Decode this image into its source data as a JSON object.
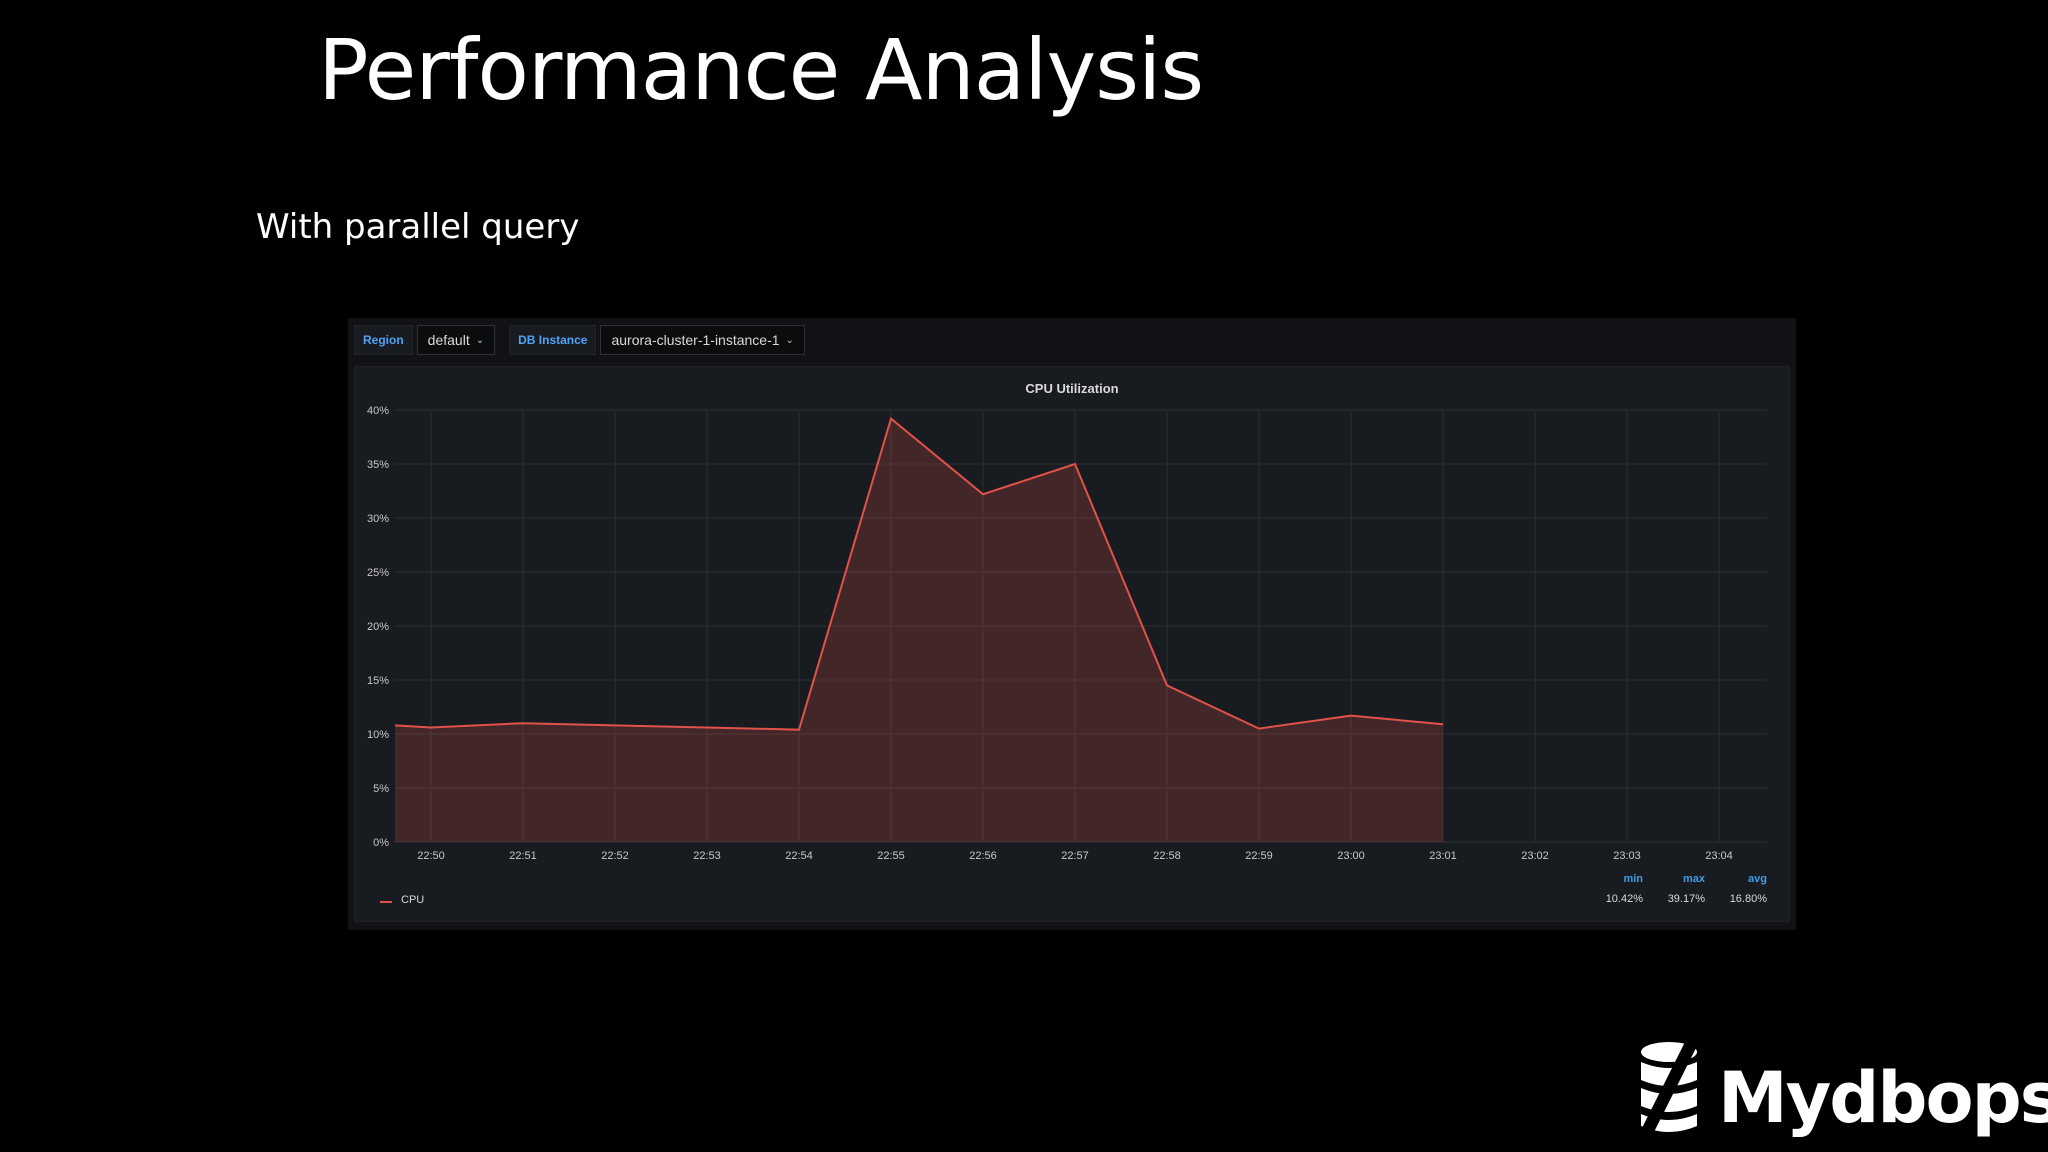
{
  "slide": {
    "title": "Performance Analysis",
    "subtitle": "With parallel query"
  },
  "dashboard": {
    "variables": [
      {
        "label": "Region",
        "value": "default"
      },
      {
        "label": "DB Instance",
        "value": "aurora-cluster-1-instance-1"
      }
    ],
    "panel_title": "CPU Utilization"
  },
  "legend": {
    "series_name": "CPU",
    "series_color": "#e0524a",
    "stats_headers": [
      "min",
      "max",
      "avg"
    ],
    "stats_values": [
      "10.42%",
      "39.17%",
      "16.80%"
    ]
  },
  "brand": {
    "name": "Mydbops",
    "logo_icon": "mydbops-logo-icon"
  },
  "chart_data": {
    "type": "area",
    "title": "CPU Utilization",
    "x_ticks": [
      "22:50",
      "22:51",
      "22:52",
      "22:53",
      "22:54",
      "22:55",
      "22:56",
      "22:57",
      "22:58",
      "22:59",
      "23:00",
      "23:01",
      "23:02",
      "23:03",
      "23:04"
    ],
    "y_ticks": [
      "0%",
      "5%",
      "10%",
      "15%",
      "20%",
      "25%",
      "30%",
      "35%",
      "40%"
    ],
    "ylim": [
      0,
      40
    ],
    "grid": true,
    "legend_position": "bottom-left",
    "series": [
      {
        "name": "CPU",
        "color": "#e0524a",
        "x": [
          "22:49:36",
          "22:50:00",
          "22:51:00",
          "22:52:00",
          "22:53:00",
          "22:54:00",
          "22:55:00",
          "22:56:00",
          "22:57:00",
          "22:58:00",
          "22:59:00",
          "23:00:00",
          "23:01:00"
        ],
        "values": [
          10.8,
          10.6,
          11.0,
          10.8,
          10.6,
          10.4,
          39.2,
          32.2,
          35.0,
          14.5,
          10.5,
          11.7,
          10.9
        ]
      }
    ]
  }
}
